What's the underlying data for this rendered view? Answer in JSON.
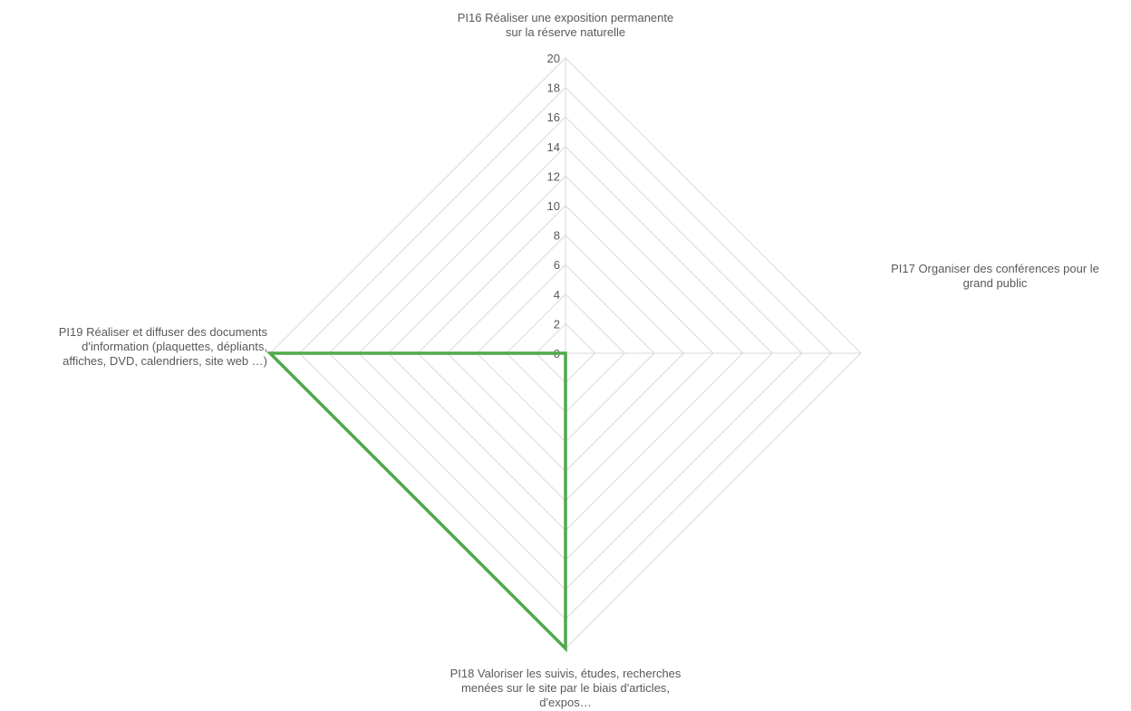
{
  "chart_data": {
    "type": "radar",
    "categories": [
      "PI16 Réaliser une exposition permanente sur la réserve naturelle",
      "PI17 Organiser des conférences pour le grand public",
      "PI18 Valoriser les suivis, études, recherches menées sur le site par le biais d'articles, d'expos…",
      "PI19 Réaliser et diffuser des documents d'information (plaquettes, dépliants, affiches, DVD, calendriers, site web …)"
    ],
    "category_lines": [
      [
        "PI16 Réaliser une exposition permanente",
        "sur la réserve naturelle"
      ],
      [
        "PI17 Organiser des conférences pour le",
        "grand public"
      ],
      [
        "PI18 Valoriser les suivis, études, recherches",
        "menées sur le site par le biais d'articles,",
        "d'expos…"
      ],
      [
        "PI19 Réaliser et diffuser des documents",
        "d'information (plaquettes, dépliants,",
        "affiches, DVD, calendriers, site web …)"
      ]
    ],
    "series": [
      {
        "values": [
          0,
          0,
          20,
          20
        ],
        "color": "#4ea94b"
      }
    ],
    "rlim": [
      0,
      20
    ],
    "ticks": [
      0,
      2,
      4,
      6,
      8,
      10,
      12,
      14,
      16,
      18,
      20
    ],
    "tick_labels": [
      "0",
      "2",
      "4",
      "6",
      "8",
      "10",
      "12",
      "14",
      "16",
      "18",
      "20"
    ],
    "grid": true,
    "grid_color": "#d9d9d9",
    "text_color": "#595959",
    "legend": "none"
  }
}
